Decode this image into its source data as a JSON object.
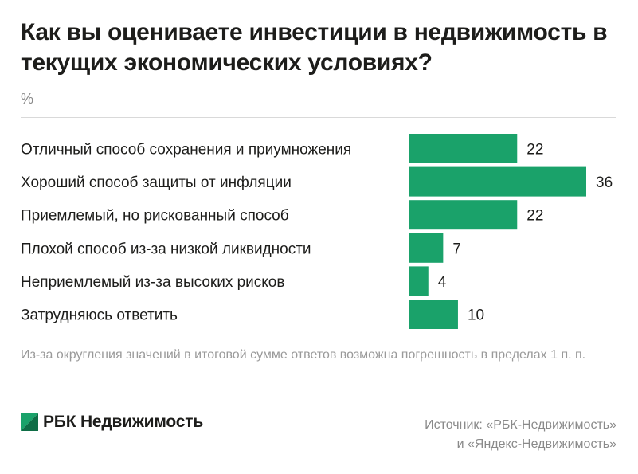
{
  "title": "Как вы оцениваете инвестиции в недвижимость в текущих экономических условиях?",
  "unit": "%",
  "colors": {
    "bar": "#1aa26a",
    "text": "#1d1d1b",
    "muted": "#8a8a8a",
    "rule": "#d9d9d9"
  },
  "chart_data": {
    "type": "bar",
    "orientation": "horizontal",
    "title": "Как вы оцениваете инвестиции в недвижимость в текущих экономических условиях?",
    "ylabel": "%",
    "categories": [
      "Отличный способ сохранения и приумножения",
      "Хороший способ защиты от инфляции",
      "Приемлемый, но рискованный способ",
      "Плохой способ из-за низкой ликвидности",
      "Неприемлемый из-за высоких рисков",
      "Затрудняюсь ответить"
    ],
    "values": [
      22,
      36,
      22,
      7,
      4,
      10
    ],
    "xlim": [
      0,
      36
    ],
    "grid": false
  },
  "footnote": "Из-за округления значений в итоговой сумме ответов возможна погрешность в пределах 1 п. п.",
  "brand": {
    "name": "РБК Недвижимость",
    "logo_icon": "rbc-logo-icon"
  },
  "source": {
    "line1": "Источник: «РБК-Недвижимость»",
    "line2": "и «Яндекс-Недвижимость»"
  }
}
